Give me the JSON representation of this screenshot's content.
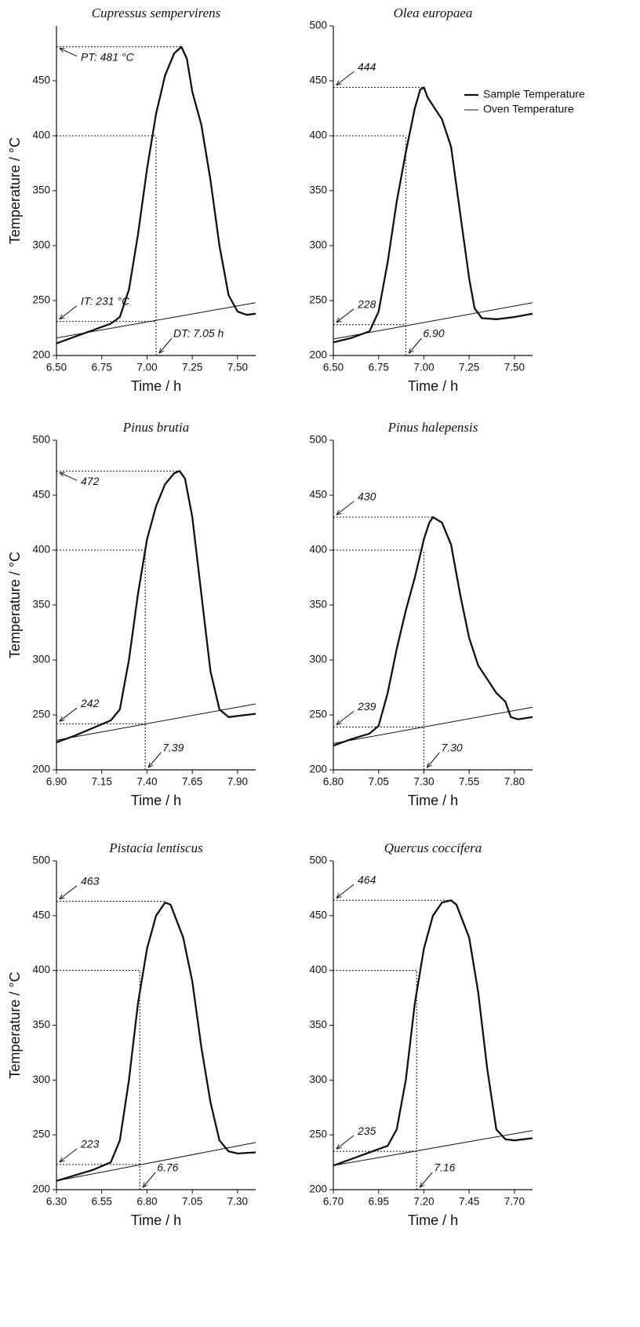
{
  "chart_data": [
    {
      "type": "line",
      "title": "Cupressus sempervirens",
      "xlabel": "Time / h",
      "ylabel": "Temperature / °C",
      "xlim": [
        6.5,
        7.6
      ],
      "ylim": [
        200,
        500
      ],
      "xticks": [
        {
          "value": 6.5,
          "label": "6.50"
        },
        {
          "value": 6.75,
          "label": "6.75"
        },
        {
          "value": 7.0,
          "label": "7.00"
        },
        {
          "value": 7.25,
          "label": "7.25"
        },
        {
          "value": 7.5,
          "label": "7.50"
        }
      ],
      "yticks": [
        200,
        250,
        300,
        350,
        400,
        450
      ],
      "threshold": 400,
      "series": [
        {
          "color": "#111111",
          "line_width": 2.3,
          "x": [
            6.5,
            6.6,
            6.7,
            6.8,
            6.85,
            6.9,
            6.95,
            7.0,
            7.05,
            7.1,
            7.15,
            7.19,
            7.22,
            7.25,
            7.3,
            7.35,
            7.4,
            7.45,
            7.5,
            7.55,
            7.6
          ],
          "values": [
            211,
            217,
            223,
            229,
            235,
            260,
            310,
            370,
            420,
            455,
            475,
            481,
            470,
            440,
            410,
            360,
            300,
            255,
            240,
            237,
            238
          ]
        },
        {
          "color": "#111111",
          "line_width": 1,
          "x": [
            6.5,
            7.6
          ],
          "values": [
            216,
            248
          ]
        }
      ],
      "annotations": [
        {
          "axis": "y",
          "value": 481,
          "label": "PT: 481 °C"
        },
        {
          "axis": "y",
          "value": 231,
          "label": "IT: 231 °C"
        },
        {
          "axis": "x",
          "value": 7.05,
          "label": "DT: 7.05 h"
        }
      ]
    },
    {
      "type": "line",
      "title": "Olea europaea",
      "xlabel": "Time / h",
      "xlim": [
        6.5,
        7.6
      ],
      "ylim": [
        200,
        500
      ],
      "xticks": [
        {
          "value": 6.5,
          "label": "6.50"
        },
        {
          "value": 6.75,
          "label": "6.75"
        },
        {
          "value": 7.0,
          "label": "7.00"
        },
        {
          "value": 7.25,
          "label": "7.25"
        },
        {
          "value": 7.5,
          "label": "7.50"
        }
      ],
      "yticks": [
        200,
        250,
        300,
        350,
        400,
        450,
        500
      ],
      "threshold": 400,
      "legend": "upper right",
      "series": [
        {
          "name": "Sample Temperature",
          "color": "#111111",
          "line_width": 2.3,
          "x": [
            6.5,
            6.6,
            6.7,
            6.75,
            6.8,
            6.85,
            6.9,
            6.95,
            6.98,
            7.0,
            7.02,
            7.1,
            7.15,
            7.2,
            7.25,
            7.28,
            7.32,
            7.4,
            7.5,
            7.6
          ],
          "values": [
            212,
            216,
            222,
            240,
            285,
            340,
            385,
            425,
            442,
            444,
            435,
            415,
            390,
            330,
            270,
            243,
            234,
            233,
            235,
            238
          ]
        },
        {
          "name": "Oven Temperature",
          "color": "#111111",
          "line_width": 1,
          "x": [
            6.5,
            7.6
          ],
          "values": [
            215,
            248
          ]
        }
      ],
      "annotations": [
        {
          "axis": "y",
          "value": 444
        },
        {
          "axis": "y",
          "value": 228
        },
        {
          "axis": "x",
          "value": 6.9,
          "label": "6.90"
        }
      ]
    },
    {
      "type": "line",
      "title": "Pinus brutia",
      "xlabel": "Time / h",
      "ylabel": "Temperature / °C",
      "xlim": [
        6.9,
        8.0
      ],
      "ylim": [
        200,
        500
      ],
      "xticks": [
        {
          "value": 6.9,
          "label": "6.90"
        },
        {
          "value": 7.15,
          "label": "7.15"
        },
        {
          "value": 7.4,
          "label": "7.40"
        },
        {
          "value": 7.65,
          "label": "7.65"
        },
        {
          "value": 7.9,
          "label": "7.90"
        }
      ],
      "yticks": [
        200,
        250,
        300,
        350,
        400,
        450,
        500
      ],
      "threshold": 400,
      "series": [
        {
          "color": "#111111",
          "line_width": 2.3,
          "x": [
            6.9,
            7.0,
            7.1,
            7.2,
            7.25,
            7.3,
            7.35,
            7.4,
            7.45,
            7.5,
            7.55,
            7.58,
            7.61,
            7.65,
            7.7,
            7.75,
            7.8,
            7.85,
            7.9,
            8.0
          ],
          "values": [
            225,
            231,
            238,
            245,
            255,
            300,
            360,
            410,
            440,
            460,
            470,
            472,
            465,
            430,
            360,
            290,
            255,
            248,
            249,
            251
          ]
        },
        {
          "color": "#111111",
          "line_width": 1,
          "x": [
            6.9,
            8.0
          ],
          "values": [
            227,
            260
          ]
        }
      ],
      "annotations": [
        {
          "axis": "y",
          "value": 472
        },
        {
          "axis": "y",
          "value": 242
        },
        {
          "axis": "x",
          "value": 7.39
        }
      ]
    },
    {
      "type": "line",
      "title": "Pinus halepensis",
      "xlabel": "Time / h",
      "xlim": [
        6.8,
        7.9
      ],
      "ylim": [
        200,
        500
      ],
      "xticks": [
        {
          "value": 6.8,
          "label": "6.80"
        },
        {
          "value": 7.05,
          "label": "7.05"
        },
        {
          "value": 7.3,
          "label": "7.30"
        },
        {
          "value": 7.55,
          "label": "7.55"
        },
        {
          "value": 7.8,
          "label": "7.80"
        }
      ],
      "yticks": [
        200,
        250,
        300,
        350,
        400,
        450,
        500
      ],
      "threshold": 400,
      "series": [
        {
          "color": "#111111",
          "line_width": 2.3,
          "x": [
            6.8,
            6.9,
            7.0,
            7.05,
            7.1,
            7.15,
            7.2,
            7.25,
            7.3,
            7.33,
            7.35,
            7.4,
            7.45,
            7.5,
            7.55,
            7.6,
            7.7,
            7.75,
            7.78,
            7.82,
            7.9
          ],
          "values": [
            222,
            228,
            233,
            240,
            270,
            310,
            345,
            375,
            410,
            425,
            430,
            425,
            405,
            360,
            320,
            295,
            270,
            262,
            248,
            246,
            248
          ]
        },
        {
          "color": "#111111",
          "line_width": 1,
          "x": [
            6.8,
            7.9
          ],
          "values": [
            224,
            257
          ]
        }
      ],
      "annotations": [
        {
          "axis": "y",
          "value": 430
        },
        {
          "axis": "y",
          "value": 239
        },
        {
          "axis": "x",
          "value": 7.3,
          "label": "7.30"
        }
      ]
    },
    {
      "type": "line",
      "title": "Pistacia lentiscus",
      "xlabel": "Time / h",
      "ylabel": "Temperature / °C",
      "xlim": [
        6.3,
        7.4
      ],
      "ylim": [
        200,
        500
      ],
      "xticks": [
        {
          "value": 6.3,
          "label": "6.30"
        },
        {
          "value": 6.55,
          "label": "6.55"
        },
        {
          "value": 6.8,
          "label": "6.80"
        },
        {
          "value": 7.05,
          "label": "7.05"
        },
        {
          "value": 7.3,
          "label": "7.30"
        }
      ],
      "yticks": [
        200,
        250,
        300,
        350,
        400,
        450,
        500
      ],
      "threshold": 400,
      "series": [
        {
          "color": "#111111",
          "line_width": 2.3,
          "x": [
            6.3,
            6.4,
            6.5,
            6.6,
            6.65,
            6.7,
            6.75,
            6.8,
            6.85,
            6.9,
            6.93,
            7.0,
            7.05,
            7.1,
            7.15,
            7.2,
            7.25,
            7.3,
            7.4
          ],
          "values": [
            208,
            213,
            218,
            225,
            245,
            300,
            370,
            420,
            450,
            462,
            460,
            430,
            390,
            330,
            280,
            245,
            235,
            233,
            234
          ]
        },
        {
          "color": "#111111",
          "line_width": 1,
          "x": [
            6.3,
            7.4
          ],
          "values": [
            208,
            243
          ]
        }
      ],
      "annotations": [
        {
          "axis": "y",
          "value": 463
        },
        {
          "axis": "y",
          "value": 223
        },
        {
          "axis": "x",
          "value": 6.76
        }
      ]
    },
    {
      "type": "line",
      "title": "Quercus coccifera",
      "xlabel": "Time / h",
      "xlim": [
        6.7,
        7.8
      ],
      "ylim": [
        200,
        500
      ],
      "xticks": [
        {
          "value": 6.7,
          "label": "6.70"
        },
        {
          "value": 6.95,
          "label": "6.95"
        },
        {
          "value": 7.2,
          "label": "7.20"
        },
        {
          "value": 7.45,
          "label": "7.45"
        },
        {
          "value": 7.7,
          "label": "7.70"
        }
      ],
      "yticks": [
        200,
        250,
        300,
        350,
        400,
        450,
        500
      ],
      "threshold": 400,
      "series": [
        {
          "color": "#111111",
          "line_width": 2.3,
          "x": [
            6.7,
            6.8,
            6.9,
            7.0,
            7.05,
            7.1,
            7.15,
            7.2,
            7.25,
            7.3,
            7.35,
            7.38,
            7.45,
            7.5,
            7.55,
            7.6,
            7.65,
            7.7,
            7.8
          ],
          "values": [
            222,
            228,
            234,
            240,
            255,
            300,
            370,
            420,
            450,
            462,
            464,
            460,
            430,
            380,
            310,
            255,
            246,
            245,
            247
          ]
        },
        {
          "color": "#111111",
          "line_width": 1,
          "x": [
            6.7,
            7.8
          ],
          "values": [
            222,
            254
          ]
        }
      ],
      "annotations": [
        {
          "axis": "y",
          "value": 464
        },
        {
          "axis": "y",
          "value": 235
        },
        {
          "axis": "x",
          "value": 7.16
        }
      ]
    }
  ]
}
